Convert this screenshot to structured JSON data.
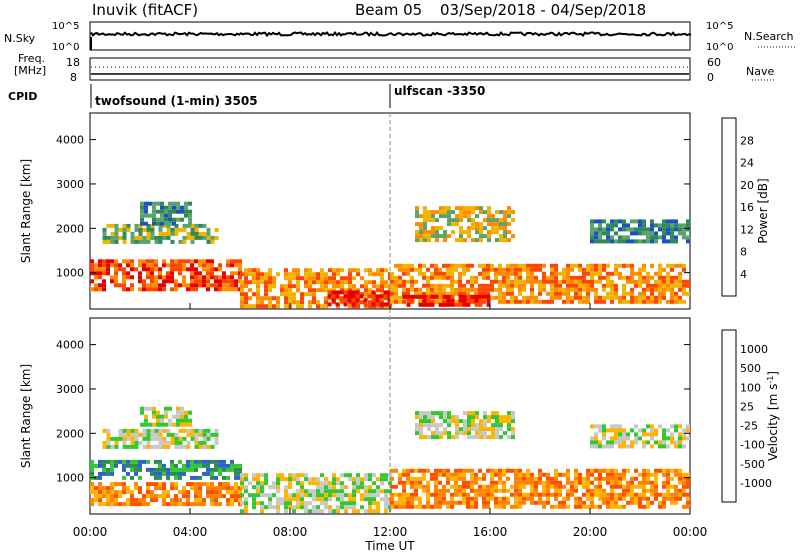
{
  "header": {
    "station": "Inuvik (fitACF)",
    "beam": "Beam 05",
    "date_range": "03/Sep/2018 - 04/Sep/2018"
  },
  "status_panels": {
    "nsky_label": "N.Sky",
    "nsky_ticks": [
      "10^5",
      "10^0"
    ],
    "nsearch_label": "N.Search",
    "nsearch_ticks": [
      "10^5",
      "10^0"
    ],
    "freq_label_line1": "Freq.",
    "freq_label_line2": "[MHz]",
    "freq_ticks": [
      "18",
      "8"
    ],
    "nave_label": "Nave",
    "nave_ticks": [
      "60",
      "0"
    ],
    "cpid_label": "CPID",
    "cpid_segments": [
      {
        "label": "twofsound (1-min) 3505",
        "start_hour": 0
      },
      {
        "label": "ulfscan -3350",
        "start_hour": 12
      }
    ]
  },
  "chart_data": [
    {
      "type": "heatmap",
      "name": "power",
      "ylabel": "Slant Range [km]",
      "yticks": [
        1000,
        2000,
        3000,
        4000
      ],
      "ylim": [
        180,
        4600
      ],
      "xlim_hours": [
        0,
        24
      ],
      "colorbar_label": "Power [dB]",
      "colorbar_ticks": [
        4,
        8,
        12,
        16,
        20,
        24,
        28
      ],
      "colorbar_colors": [
        "#0000e6",
        "#1e50c8",
        "#2e8b57",
        "#5aa36a",
        "#f0b400",
        "#ff8c00",
        "#ff4500",
        "#e60000"
      ],
      "echo_bands": [
        {
          "t0": 0.0,
          "t1": 6.0,
          "r0": 600,
          "r1": 1300,
          "level": 6
        },
        {
          "t0": 0.5,
          "t1": 5.0,
          "r0": 1700,
          "r1": 2100,
          "level": 3
        },
        {
          "t0": 2.0,
          "t1": 4.0,
          "r0": 2100,
          "r1": 2600,
          "level": 2
        },
        {
          "t0": 6.0,
          "t1": 12.0,
          "r0": 250,
          "r1": 1100,
          "level": 5
        },
        {
          "t0": 9.5,
          "t1": 12.0,
          "r0": 250,
          "r1": 600,
          "level": 7
        },
        {
          "t0": 12.0,
          "t1": 24.0,
          "r0": 300,
          "r1": 1200,
          "level": 5
        },
        {
          "t0": 13.0,
          "t1": 17.0,
          "r0": 1700,
          "r1": 2500,
          "level": 4
        },
        {
          "t0": 20.0,
          "t1": 24.0,
          "r0": 1700,
          "r1": 2200,
          "level": 2
        },
        {
          "t0": 12.5,
          "t1": 16.0,
          "r0": 250,
          "r1": 500,
          "level": 7
        }
      ]
    },
    {
      "type": "heatmap",
      "name": "velocity",
      "ylabel": "Slant Range [km]",
      "yticks": [
        1000,
        2000,
        3000,
        4000
      ],
      "ylim": [
        180,
        4600
      ],
      "xlim_hours": [
        0,
        24
      ],
      "colorbar_label": "Velocity [m s",
      "colorbar_label_exp": "-1",
      "colorbar_label_end": "]",
      "colorbar_ticks": [
        1000,
        500,
        100,
        25,
        -25,
        -100,
        -500,
        -1000
      ],
      "colorbar_colors": [
        "#1e3cc8",
        "#2e64c8",
        "#2e8b57",
        "#32c832",
        "#c8c8c8",
        "#ffb400",
        "#ff8200",
        "#ff5000",
        "#e61414"
      ],
      "echo_bands": [
        {
          "t0": 0.0,
          "t1": 6.0,
          "r0": 400,
          "r1": 900,
          "level": 6
        },
        {
          "t0": 0.0,
          "t1": 6.0,
          "r0": 1000,
          "r1": 1400,
          "level": 2
        },
        {
          "t0": 0.5,
          "t1": 5.0,
          "r0": 1700,
          "r1": 2100,
          "level": 4
        },
        {
          "t0": 2.0,
          "t1": 4.0,
          "r0": 2200,
          "r1": 2600,
          "level": 4
        },
        {
          "t0": 6.0,
          "t1": 12.0,
          "r0": 250,
          "r1": 1100,
          "level": 4
        },
        {
          "t0": 12.0,
          "t1": 24.0,
          "r0": 300,
          "r1": 1200,
          "level": 6
        },
        {
          "t0": 13.0,
          "t1": 17.0,
          "r0": 1900,
          "r1": 2500,
          "level": 4
        },
        {
          "t0": 20.0,
          "t1": 24.0,
          "r0": 1700,
          "r1": 2200,
          "level": 4
        }
      ]
    }
  ],
  "x_axis": {
    "tick_labels": [
      "00:00",
      "04:00",
      "08:00",
      "12:00",
      "16:00",
      "20:00",
      "00:00"
    ],
    "tick_hours": [
      0,
      4,
      8,
      12,
      16,
      20,
      24
    ],
    "label": "Time UT"
  }
}
